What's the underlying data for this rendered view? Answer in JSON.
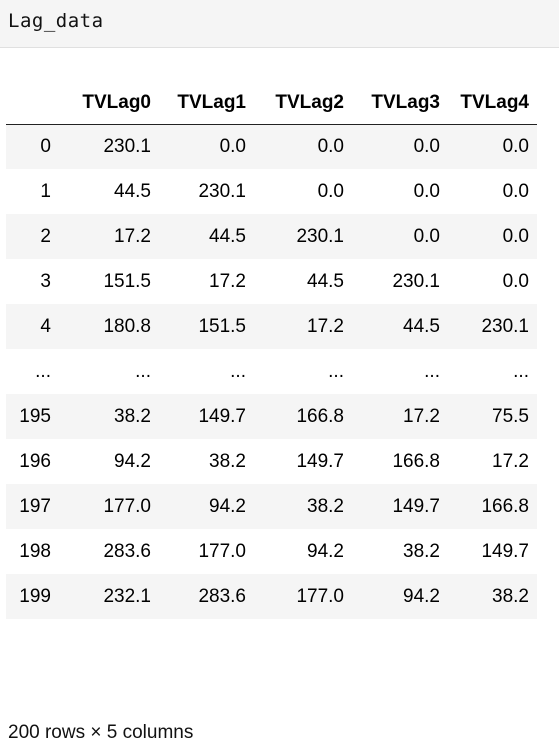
{
  "code_cell": {
    "source": "Lag_data"
  },
  "table": {
    "columns": [
      "TVLag0",
      "TVLag1",
      "TVLag2",
      "TVLag3",
      "TVLag4"
    ],
    "rows": [
      {
        "index": "0",
        "values": [
          "230.1",
          "0.0",
          "0.0",
          "0.0",
          "0.0"
        ]
      },
      {
        "index": "1",
        "values": [
          "44.5",
          "230.1",
          "0.0",
          "0.0",
          "0.0"
        ]
      },
      {
        "index": "2",
        "values": [
          "17.2",
          "44.5",
          "230.1",
          "0.0",
          "0.0"
        ]
      },
      {
        "index": "3",
        "values": [
          "151.5",
          "17.2",
          "44.5",
          "230.1",
          "0.0"
        ]
      },
      {
        "index": "4",
        "values": [
          "180.8",
          "151.5",
          "17.2",
          "44.5",
          "230.1"
        ]
      },
      {
        "index": "...",
        "values": [
          "...",
          "...",
          "...",
          "...",
          "..."
        ]
      },
      {
        "index": "195",
        "values": [
          "38.2",
          "149.7",
          "166.8",
          "17.2",
          "75.5"
        ]
      },
      {
        "index": "196",
        "values": [
          "94.2",
          "38.2",
          "149.7",
          "166.8",
          "17.2"
        ]
      },
      {
        "index": "197",
        "values": [
          "177.0",
          "94.2",
          "38.2",
          "149.7",
          "166.8"
        ]
      },
      {
        "index": "198",
        "values": [
          "283.6",
          "177.0",
          "94.2",
          "38.2",
          "149.7"
        ]
      },
      {
        "index": "199",
        "values": [
          "232.1",
          "283.6",
          "177.0",
          "94.2",
          "38.2"
        ]
      }
    ]
  },
  "footer": {
    "shape_text": "200 rows × 5 columns"
  }
}
